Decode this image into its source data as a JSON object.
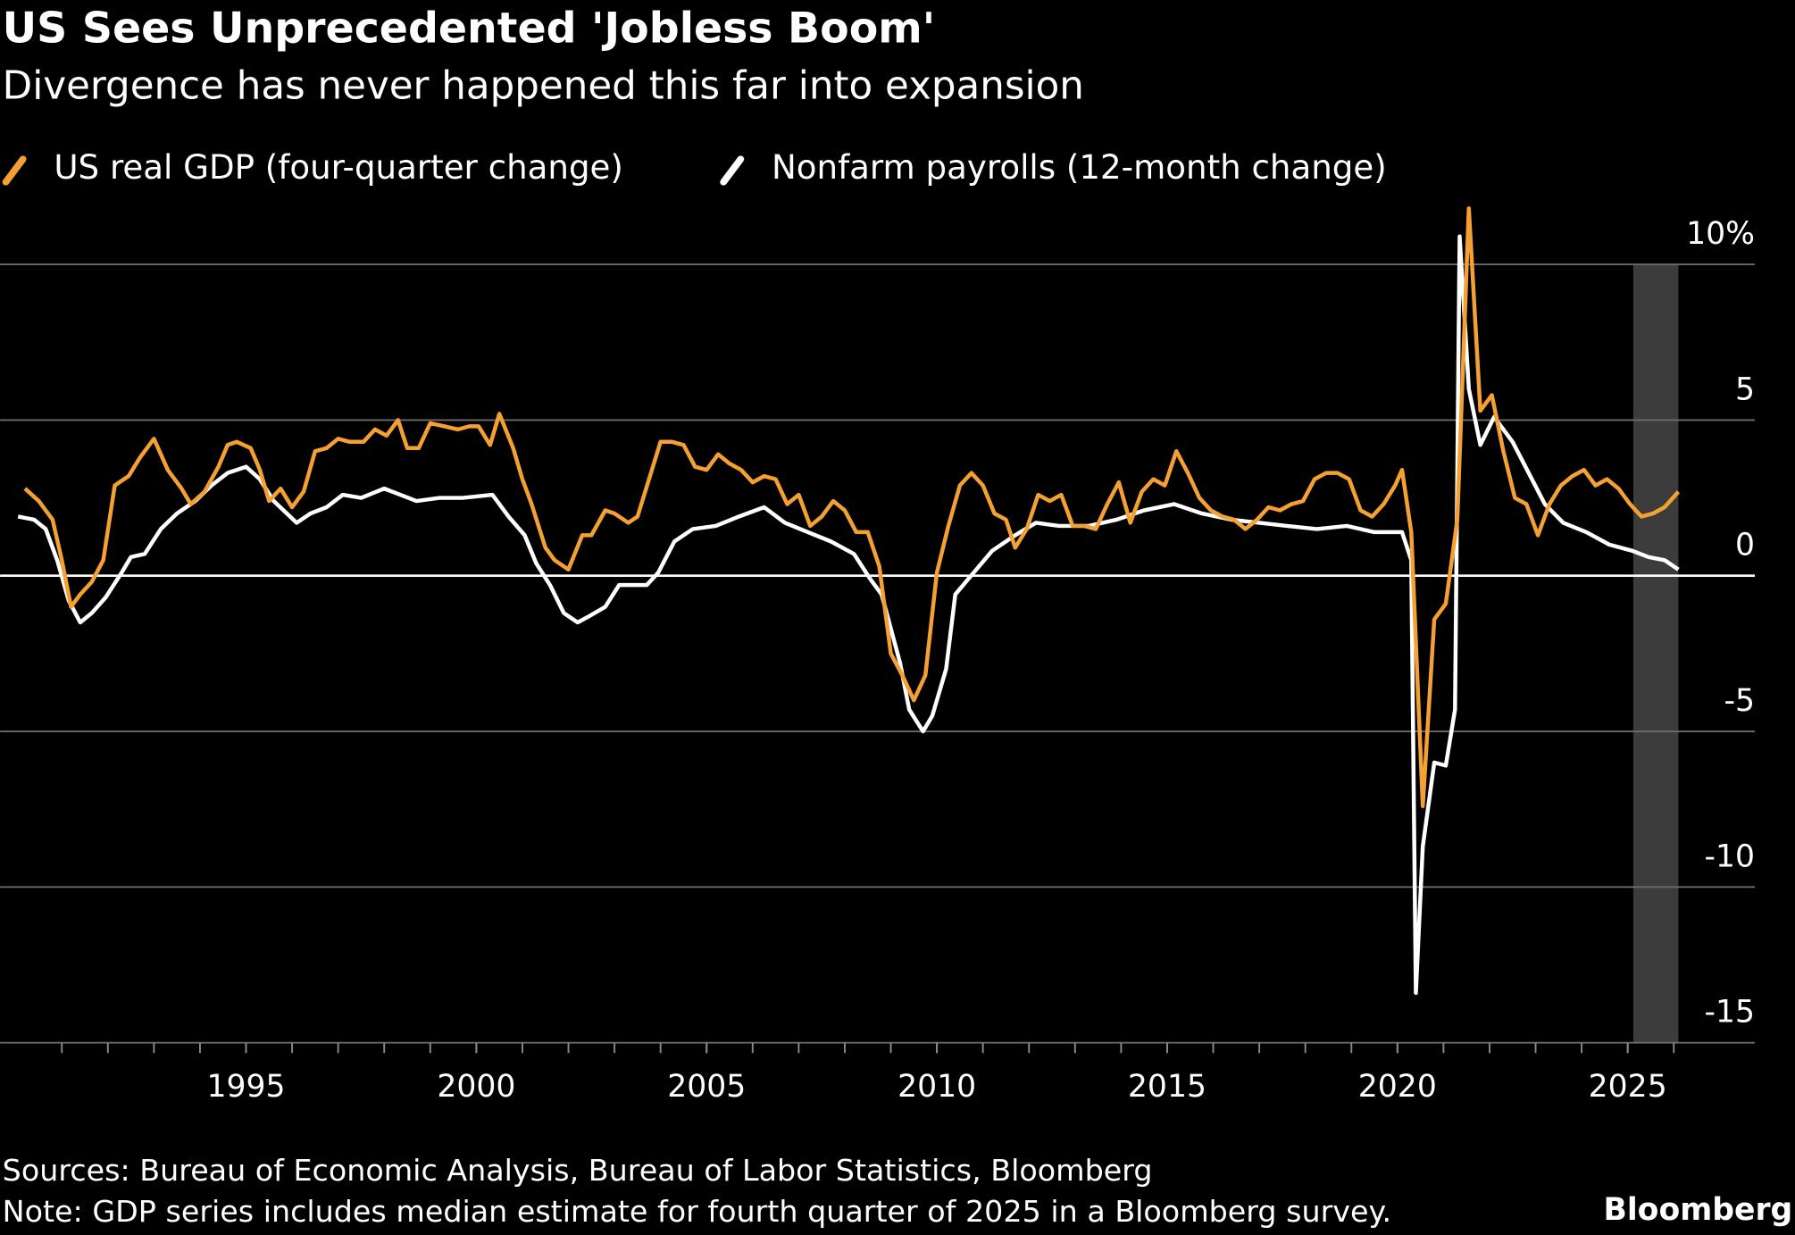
{
  "chart_data": {
    "type": "line",
    "title": "US Sees Unprecedented 'Jobless Boom'",
    "subtitle": "Divergence has never happened this far into expansion",
    "sources": "Sources: Bureau of Economic Analysis, Bureau of Labor Statistics, Bloomberg",
    "note": "Note: GDP series includes median estimate for fourth quarter of 2025 in a Bloomberg survey.",
    "brand": "Bloomberg",
    "xlim": [
      1989.66,
      2027.76
    ],
    "ylim": [
      -15,
      12
    ],
    "xticks": [
      1995,
      2000,
      2005,
      2010,
      2015,
      2020,
      2025
    ],
    "xminor_ticks": [
      1991,
      1992,
      1993,
      1994,
      1995,
      1996,
      1997,
      1998,
      1999,
      2000,
      2001,
      2002,
      2003,
      2004,
      2005,
      2006,
      2007,
      2008,
      2009,
      2010,
      2011,
      2012,
      2013,
      2014,
      2015,
      2016,
      2017,
      2018,
      2019,
      2020,
      2021,
      2022,
      2023,
      2024,
      2025,
      2026
    ],
    "yticks": [
      -15,
      -10,
      -5,
      0,
      5,
      {
        "value": 10,
        "label": "10%"
      }
    ],
    "grid": true,
    "highlight_x": [
      2025.12,
      2026.1
    ],
    "series": [
      {
        "name": "US real GDP (four-quarter change)",
        "color": "#f5a033",
        "x": [
          1990.2,
          1990.5,
          1990.8,
          1991.0,
          1991.2,
          1991.4,
          1991.65,
          1991.9,
          1992.15,
          1992.45,
          1992.7,
          1993.0,
          1993.3,
          1993.6,
          1993.8,
          1994.1,
          1994.4,
          1994.6,
          1994.8,
          1995.1,
          1995.3,
          1995.5,
          1995.75,
          1996.0,
          1996.25,
          1996.5,
          1996.75,
          1997.0,
          1997.25,
          1997.55,
          1997.8,
          1998.05,
          1998.3,
          1998.5,
          1998.75,
          1999.0,
          1999.3,
          1999.6,
          1999.85,
          2000.05,
          2000.3,
          2000.5,
          2000.8,
          2001.0,
          2001.2,
          2001.5,
          2001.7,
          2002.0,
          2002.3,
          2002.5,
          2002.8,
          2003.0,
          2003.3,
          2003.5,
          2003.75,
          2004.0,
          2004.25,
          2004.5,
          2004.75,
          2005.0,
          2005.25,
          2005.5,
          2005.75,
          2006.0,
          2006.25,
          2006.5,
          2006.75,
          2007.0,
          2007.25,
          2007.5,
          2007.75,
          2008.0,
          2008.25,
          2008.5,
          2008.75,
          2009.0,
          2009.25,
          2009.5,
          2009.75,
          2010.0,
          2010.25,
          2010.5,
          2010.75,
          2011.0,
          2011.25,
          2011.5,
          2011.7,
          2011.95,
          2012.2,
          2012.45,
          2012.7,
          2012.95,
          2013.2,
          2013.45,
          2013.7,
          2013.95,
          2014.2,
          2014.45,
          2014.7,
          2014.95,
          2015.2,
          2015.45,
          2015.7,
          2015.95,
          2016.2,
          2016.45,
          2016.7,
          2016.95,
          2017.2,
          2017.45,
          2017.7,
          2017.95,
          2018.2,
          2018.45,
          2018.7,
          2018.95,
          2019.2,
          2019.45,
          2019.7,
          2019.95,
          2020.1,
          2020.3,
          2020.55,
          2020.8,
          2021.05,
          2021.3,
          2021.55,
          2021.8,
          2022.05,
          2022.3,
          2022.55,
          2022.8,
          2023.05,
          2023.3,
          2023.55,
          2023.8,
          2024.05,
          2024.3,
          2024.55,
          2024.8,
          2025.05,
          2025.3,
          2025.55,
          2025.8,
          2026.1
        ],
        "values": [
          2.8,
          2.4,
          1.8,
          0.5,
          -1.0,
          -0.6,
          -0.2,
          0.5,
          2.9,
          3.2,
          3.8,
          4.4,
          3.4,
          2.8,
          2.3,
          2.7,
          3.5,
          4.2,
          4.3,
          4.1,
          3.4,
          2.4,
          2.8,
          2.2,
          2.7,
          4.0,
          4.1,
          4.4,
          4.3,
          4.3,
          4.7,
          4.5,
          5.0,
          4.1,
          4.1,
          4.9,
          4.8,
          4.7,
          4.8,
          4.8,
          4.2,
          5.2,
          4.1,
          3.1,
          2.3,
          0.9,
          0.5,
          0.2,
          1.3,
          1.3,
          2.1,
          2.0,
          1.7,
          1.9,
          3.1,
          4.3,
          4.3,
          4.2,
          3.5,
          3.4,
          3.9,
          3.6,
          3.4,
          3.0,
          3.2,
          3.1,
          2.3,
          2.6,
          1.6,
          1.9,
          2.4,
          2.1,
          1.4,
          1.4,
          0.3,
          -2.5,
          -3.2,
          -4.0,
          -3.2,
          0.1,
          1.6,
          2.9,
          3.3,
          2.9,
          2.0,
          1.8,
          0.9,
          1.5,
          2.6,
          2.4,
          2.6,
          1.6,
          1.6,
          1.5,
          2.3,
          3.0,
          1.7,
          2.7,
          3.1,
          2.9,
          4.0,
          3.3,
          2.5,
          2.1,
          1.9,
          1.8,
          1.5,
          1.8,
          2.2,
          2.1,
          2.3,
          2.4,
          3.1,
          3.3,
          3.3,
          3.1,
          2.1,
          1.9,
          2.3,
          2.9,
          3.4,
          1.4,
          -7.4,
          -1.4,
          -0.9,
          1.8,
          11.8,
          5.3,
          5.8,
          4.0,
          2.5,
          2.3,
          1.3,
          2.3,
          2.9,
          3.2,
          3.4,
          2.9,
          3.1,
          2.8,
          2.3,
          1.9,
          2.0,
          2.2,
          2.7
        ]
      },
      {
        "name": "Nonfarm payrolls (12-month change)",
        "color": "#ffffff",
        "x": [
          1990.05,
          1990.4,
          1990.65,
          1990.9,
          1991.15,
          1991.4,
          1991.65,
          1991.95,
          1992.3,
          1992.5,
          1992.8,
          1993.15,
          1993.5,
          1993.9,
          1994.25,
          1994.6,
          1995.0,
          1995.3,
          1995.6,
          1996.1,
          1996.4,
          1996.75,
          1997.1,
          1997.5,
          1998.0,
          1998.35,
          1998.7,
          1999.2,
          1999.7,
          2000.35,
          2000.7,
          2001.05,
          2001.3,
          2001.6,
          2001.9,
          2002.2,
          2002.45,
          2002.8,
          2003.1,
          2003.4,
          2003.7,
          2003.95,
          2004.3,
          2004.7,
          2005.2,
          2005.7,
          2006.25,
          2006.7,
          2007.2,
          2007.7,
          2008.2,
          2008.55,
          2008.8,
          2009.2,
          2009.4,
          2009.7,
          2009.9,
          2010.2,
          2010.4,
          2010.8,
          2011.2,
          2011.7,
          2012.15,
          2012.65,
          2013.3,
          2013.9,
          2014.5,
          2015.15,
          2015.75,
          2016.4,
          2017.0,
          2017.6,
          2018.25,
          2018.9,
          2019.5,
          2020.1,
          2020.3,
          2020.4,
          2020.55,
          2020.8,
          2021.05,
          2021.25,
          2021.35,
          2021.55,
          2021.8,
          2022.1,
          2022.5,
          2022.85,
          2023.2,
          2023.6,
          2024.1,
          2024.6,
          2025.1,
          2025.45,
          2025.8,
          2026.1
        ],
        "values": [
          1.9,
          1.8,
          1.5,
          0.5,
          -0.8,
          -1.5,
          -1.2,
          -0.7,
          0.1,
          0.6,
          0.7,
          1.5,
          2.0,
          2.4,
          2.9,
          3.3,
          3.5,
          3.1,
          2.4,
          1.7,
          2.0,
          2.2,
          2.6,
          2.5,
          2.8,
          2.6,
          2.4,
          2.5,
          2.5,
          2.6,
          1.9,
          1.3,
          0.4,
          -0.3,
          -1.2,
          -1.5,
          -1.3,
          -1.0,
          -0.3,
          -0.3,
          -0.3,
          0.1,
          1.1,
          1.5,
          1.6,
          1.9,
          2.2,
          1.7,
          1.4,
          1.1,
          0.7,
          -0.1,
          -0.6,
          -2.8,
          -4.3,
          -5.0,
          -4.5,
          -3.0,
          -0.6,
          0.1,
          0.8,
          1.3,
          1.7,
          1.6,
          1.6,
          1.8,
          2.1,
          2.3,
          2.0,
          1.8,
          1.7,
          1.6,
          1.5,
          1.6,
          1.4,
          1.4,
          0.5,
          -13.4,
          -8.7,
          -6.0,
          -6.1,
          -4.3,
          10.9,
          6.0,
          4.2,
          5.1,
          4.3,
          3.3,
          2.3,
          1.7,
          1.4,
          1.0,
          0.8,
          0.6,
          0.5,
          0.2
        ]
      }
    ]
  }
}
